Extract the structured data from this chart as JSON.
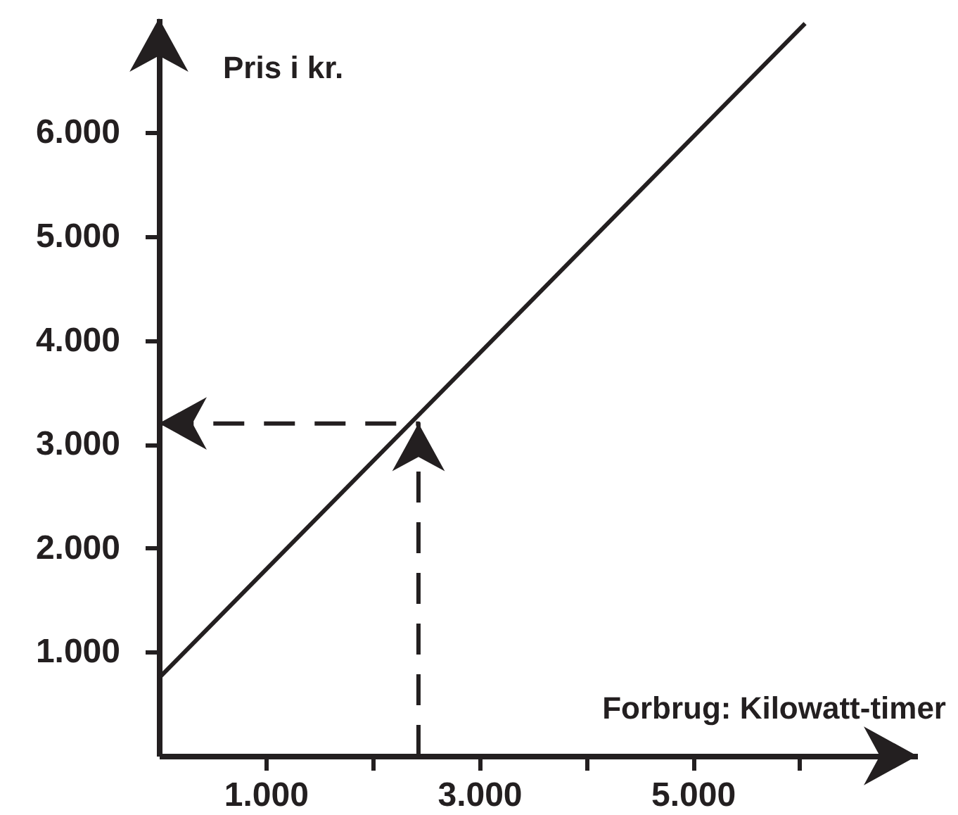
{
  "chart_data": {
    "type": "line",
    "xlabel": "Forbrug: Kilowatt-timer",
    "ylabel": "Pris i kr.",
    "xlim": [
      0,
      7100
    ],
    "ylim": [
      0,
      7100
    ],
    "xticks": [
      {
        "value": 1000,
        "label": "1.000"
      },
      {
        "value": 2000,
        "label": null
      },
      {
        "value": 3000,
        "label": "3.000"
      },
      {
        "value": 4000,
        "label": null
      },
      {
        "value": 5000,
        "label": "5.000"
      },
      {
        "value": 6000,
        "label": null
      }
    ],
    "yticks": [
      {
        "value": 1000,
        "label": "1.000"
      },
      {
        "value": 2000,
        "label": "2.000"
      },
      {
        "value": 3000,
        "label": "3.000"
      },
      {
        "value": 4000,
        "label": "4.000"
      },
      {
        "value": 5000,
        "label": "5.000"
      },
      {
        "value": 6000,
        "label": "6.000"
      }
    ],
    "grid": false,
    "marker": "none",
    "series": [
      {
        "color": "#231f20",
        "x": [
          0,
          6050
        ],
        "values": [
          750,
          7050
        ],
        "line_style": "solid"
      },
      {
        "color": "#231f20",
        "x": [
          2430,
          2430,
          0
        ],
        "values": [
          0,
          3200,
          3200
        ],
        "line_style": "dashed"
      }
    ]
  }
}
